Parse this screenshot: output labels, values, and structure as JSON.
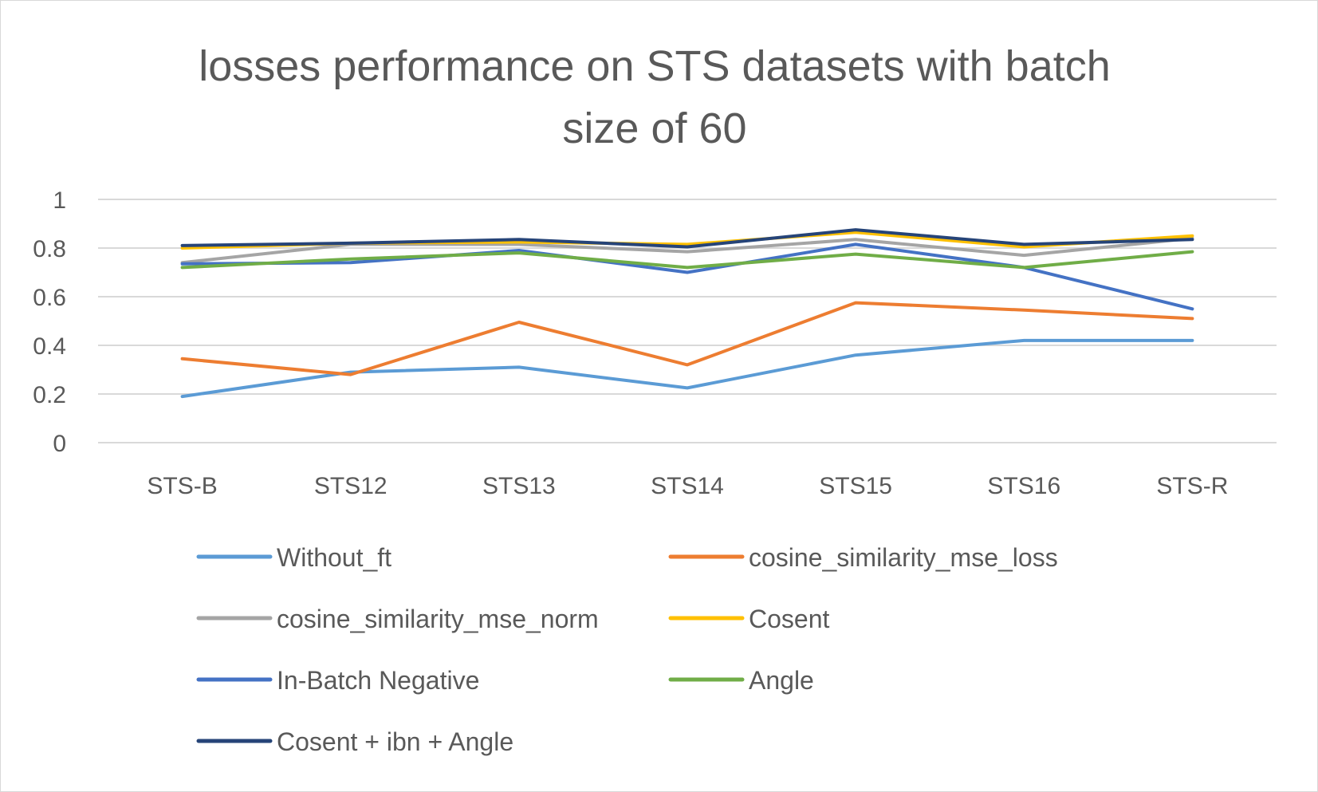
{
  "chart_data": {
    "type": "line",
    "title_lines": [
      "losses performance on STS datasets with batch",
      "size of 60"
    ],
    "xlabel": "",
    "ylabel": "",
    "categories": [
      "STS-B",
      "STS12",
      "STS13",
      "STS14",
      "STS15",
      "STS16",
      "STS-R"
    ],
    "ylim": [
      0,
      1
    ],
    "yticks": [
      "0",
      "0.2",
      "0.4",
      "0.6",
      "0.8",
      "1"
    ],
    "grid": true,
    "legend_position": "bottom",
    "series": [
      {
        "name": "Without_ft",
        "color": "#5b9bd5",
        "values": [
          0.19,
          0.29,
          0.31,
          0.225,
          0.36,
          0.42,
          0.42
        ]
      },
      {
        "name": "cosine_similarity_mse_loss",
        "color": "#ed7d31",
        "values": [
          0.345,
          0.28,
          0.495,
          0.32,
          0.575,
          0.545,
          0.51
        ]
      },
      {
        "name": "cosine_similarity_mse_norm",
        "color": "#a5a5a5",
        "values": [
          0.74,
          0.815,
          0.815,
          0.785,
          0.835,
          0.77,
          0.84
        ]
      },
      {
        "name": "Cosent",
        "color": "#ffc000",
        "values": [
          0.8,
          0.82,
          0.825,
          0.815,
          0.865,
          0.805,
          0.85
        ]
      },
      {
        "name": "In-Batch Negative",
        "color": "#4472c4",
        "values": [
          0.735,
          0.74,
          0.79,
          0.7,
          0.815,
          0.72,
          0.55
        ]
      },
      {
        "name": "Angle",
        "color": "#70ad47",
        "values": [
          0.72,
          0.755,
          0.78,
          0.72,
          0.775,
          0.72,
          0.785
        ]
      },
      {
        "name": "Cosent + ibn + Angle",
        "color": "#264478",
        "values": [
          0.81,
          0.82,
          0.835,
          0.805,
          0.875,
          0.815,
          0.835
        ]
      }
    ]
  }
}
